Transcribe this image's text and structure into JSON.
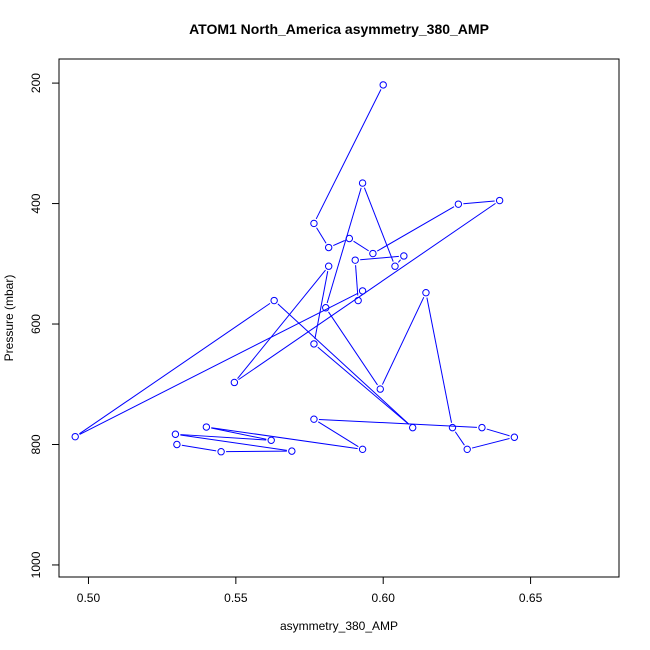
{
  "chart_data": {
    "type": "line",
    "title": "ATOM1 North_America asymmetry_380_AMP",
    "xlabel": "asymmetry_380_AMP",
    "ylabel": "Pressure (mbar)",
    "xlim": [
      0.49,
      0.68
    ],
    "ylim": [
      1020,
      160
    ],
    "y_reversed": true,
    "x_ticks": [
      0.5,
      0.55,
      0.6,
      0.65
    ],
    "x_tick_labels": [
      "0.50",
      "0.55",
      "0.60",
      "0.65"
    ],
    "y_ticks": [
      200,
      400,
      600,
      800,
      1000
    ],
    "y_tick_labels": [
      "200",
      "400",
      "600",
      "800",
      "1000"
    ],
    "grid": false,
    "series_color": "#0000ff",
    "series": [
      {
        "marker": "open-circle",
        "x": [
          0.6,
          0.5765,
          0.5815,
          0.5885,
          0.5965,
          0.6255,
          0.6395,
          0.5495,
          0.5815,
          0.5765,
          0.61,
          0.563,
          0.4955,
          0.593,
          0.5915,
          0.5905,
          0.607,
          0.604,
          0.593,
          0.5805,
          0.599,
          0.6145,
          0.6235,
          0.6285,
          0.6445,
          0.6335,
          0.5765,
          0.593,
          0.54,
          0.562,
          0.5295,
          0.569,
          0.545,
          0.53
        ],
        "y": [
          203,
          433,
          473,
          458,
          483,
          401,
          395,
          697,
          504,
          633,
          772,
          561,
          787,
          545,
          561,
          494,
          487,
          504,
          366,
          573,
          708,
          548,
          772,
          808,
          788,
          772,
          758,
          808,
          771,
          793,
          783,
          811,
          812,
          800
        ]
      }
    ]
  }
}
